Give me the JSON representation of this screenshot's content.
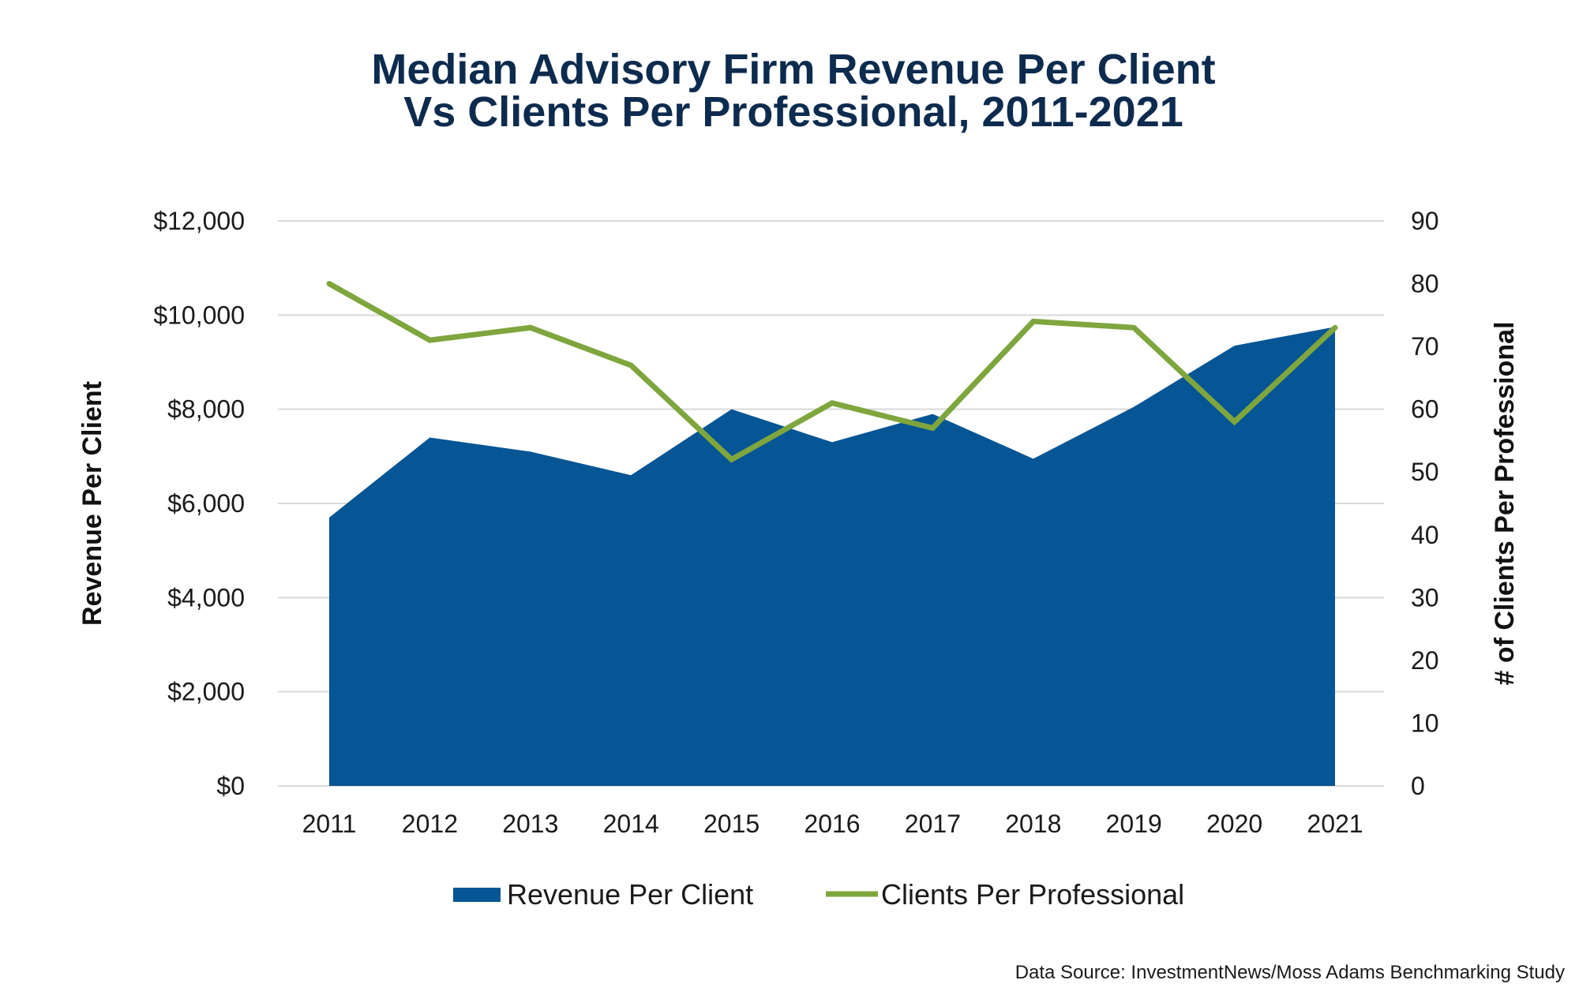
{
  "chart_data": {
    "type": "area+line",
    "title_line1": "Median Advisory Firm Revenue Per Client",
    "title_line2": "Vs Clients Per Professional, 2011-2021",
    "categories": [
      "2011",
      "2012",
      "2013",
      "2014",
      "2015",
      "2016",
      "2017",
      "2018",
      "2019",
      "2020",
      "2021"
    ],
    "series": [
      {
        "name": "Revenue Per Client",
        "type": "area",
        "axis": "left",
        "color": "#065594",
        "values": [
          5700,
          7400,
          7100,
          6600,
          8000,
          7300,
          7900,
          6950,
          8050,
          9350,
          9750
        ]
      },
      {
        "name": "Clients Per Professional",
        "type": "line",
        "axis": "right",
        "color": "#7fa63e",
        "values": [
          80,
          71,
          73,
          67,
          52,
          61,
          57,
          74,
          73,
          58,
          73
        ]
      }
    ],
    "ylabel_left": "Revenue Per Client",
    "ylabel_right": "# of Clients Per Professional",
    "ylim_left": [
      0,
      12000
    ],
    "ylim_right": [
      0,
      90
    ],
    "left_ticks": [
      "$0",
      "$2,000",
      "$4,000",
      "$6,000",
      "$8,000",
      "$10,000",
      "$12,000"
    ],
    "right_ticks": [
      "0",
      "10",
      "20",
      "30",
      "40",
      "50",
      "60",
      "70",
      "80",
      "90"
    ],
    "grid": true,
    "grid_color": "#d9d9d9",
    "legend_position": "bottom",
    "source": "Data Source:  InvestmentNews/Moss Adams Benchmarking Study"
  }
}
